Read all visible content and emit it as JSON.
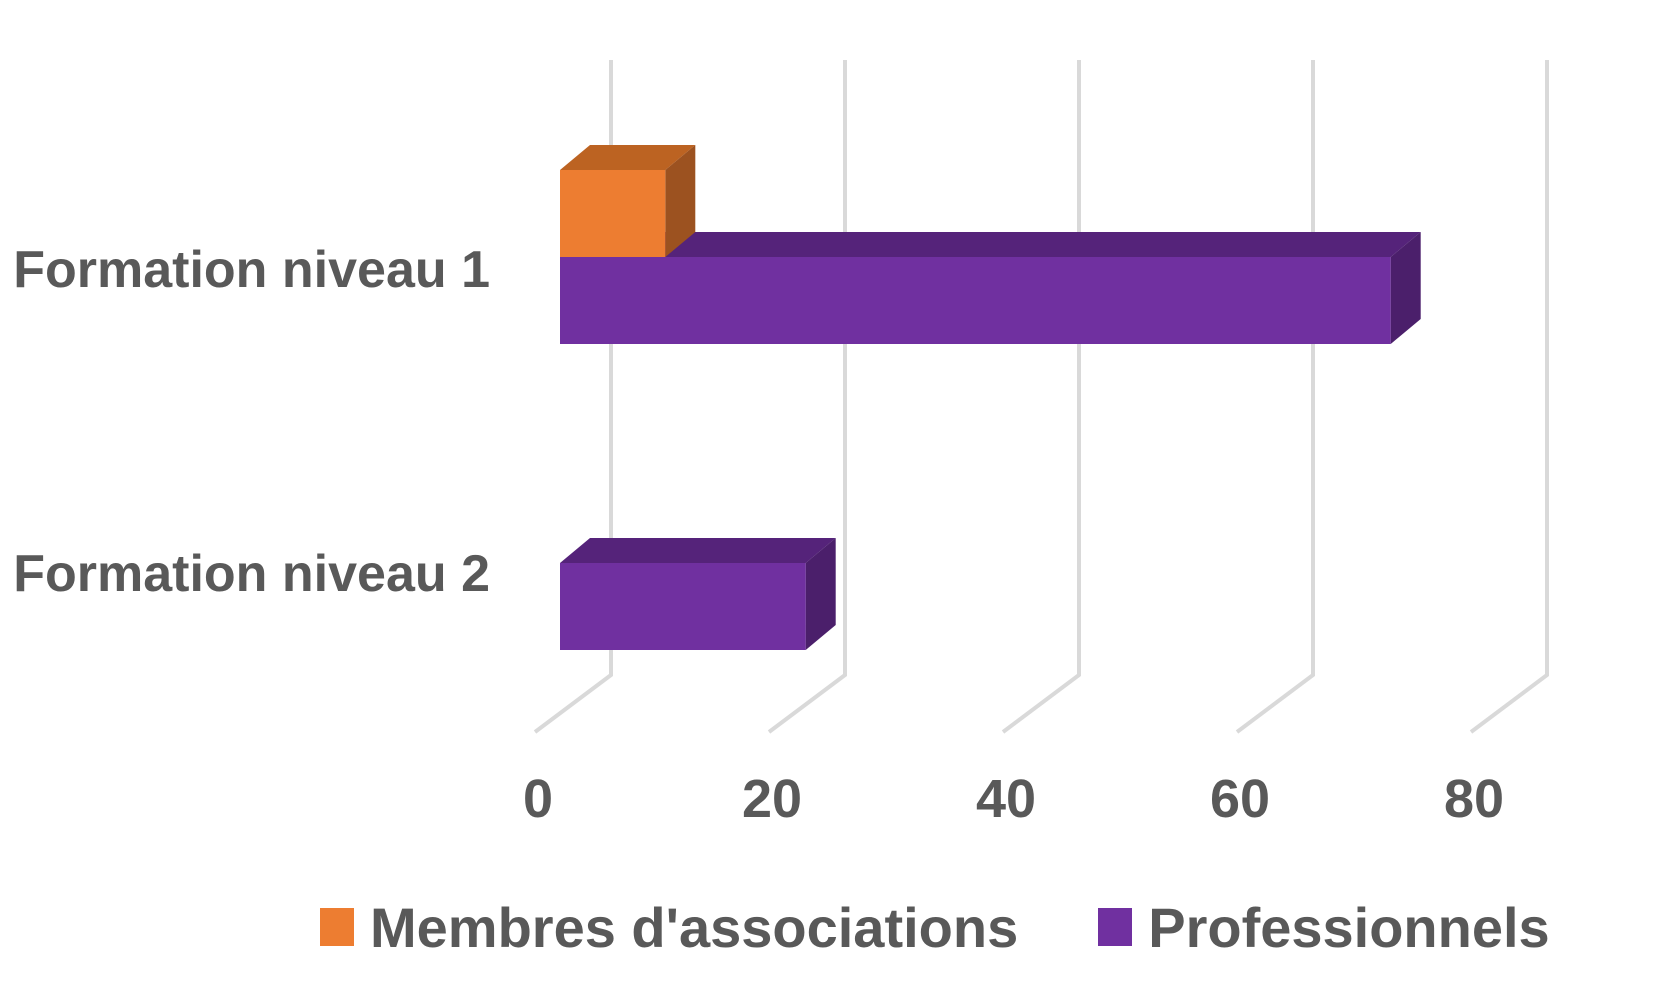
{
  "chart_data": {
    "type": "bar",
    "orientation": "horizontal",
    "style": "3d",
    "title": "",
    "categories": [
      "Formation niveau 1",
      "Formation niveau 2"
    ],
    "series": [
      {
        "name": "Membres d'associations",
        "values": [
          9,
          0
        ],
        "color": "#ED7D31",
        "color_top": "#BC6322",
        "color_side": "#9C5220"
      },
      {
        "name": "Professionnels",
        "values": [
          71,
          21
        ],
        "color": "#7030A0",
        "color_top": "#55237A",
        "color_side": "#4B1F6B"
      }
    ],
    "x_ticks": [
      0,
      20,
      40,
      60,
      80
    ],
    "xlim": [
      0,
      80
    ],
    "grid": true,
    "legend_position": "bottom",
    "colors": {
      "text": "#595959",
      "gridline": "#D9D9D9",
      "background": "#FFFFFF"
    }
  }
}
